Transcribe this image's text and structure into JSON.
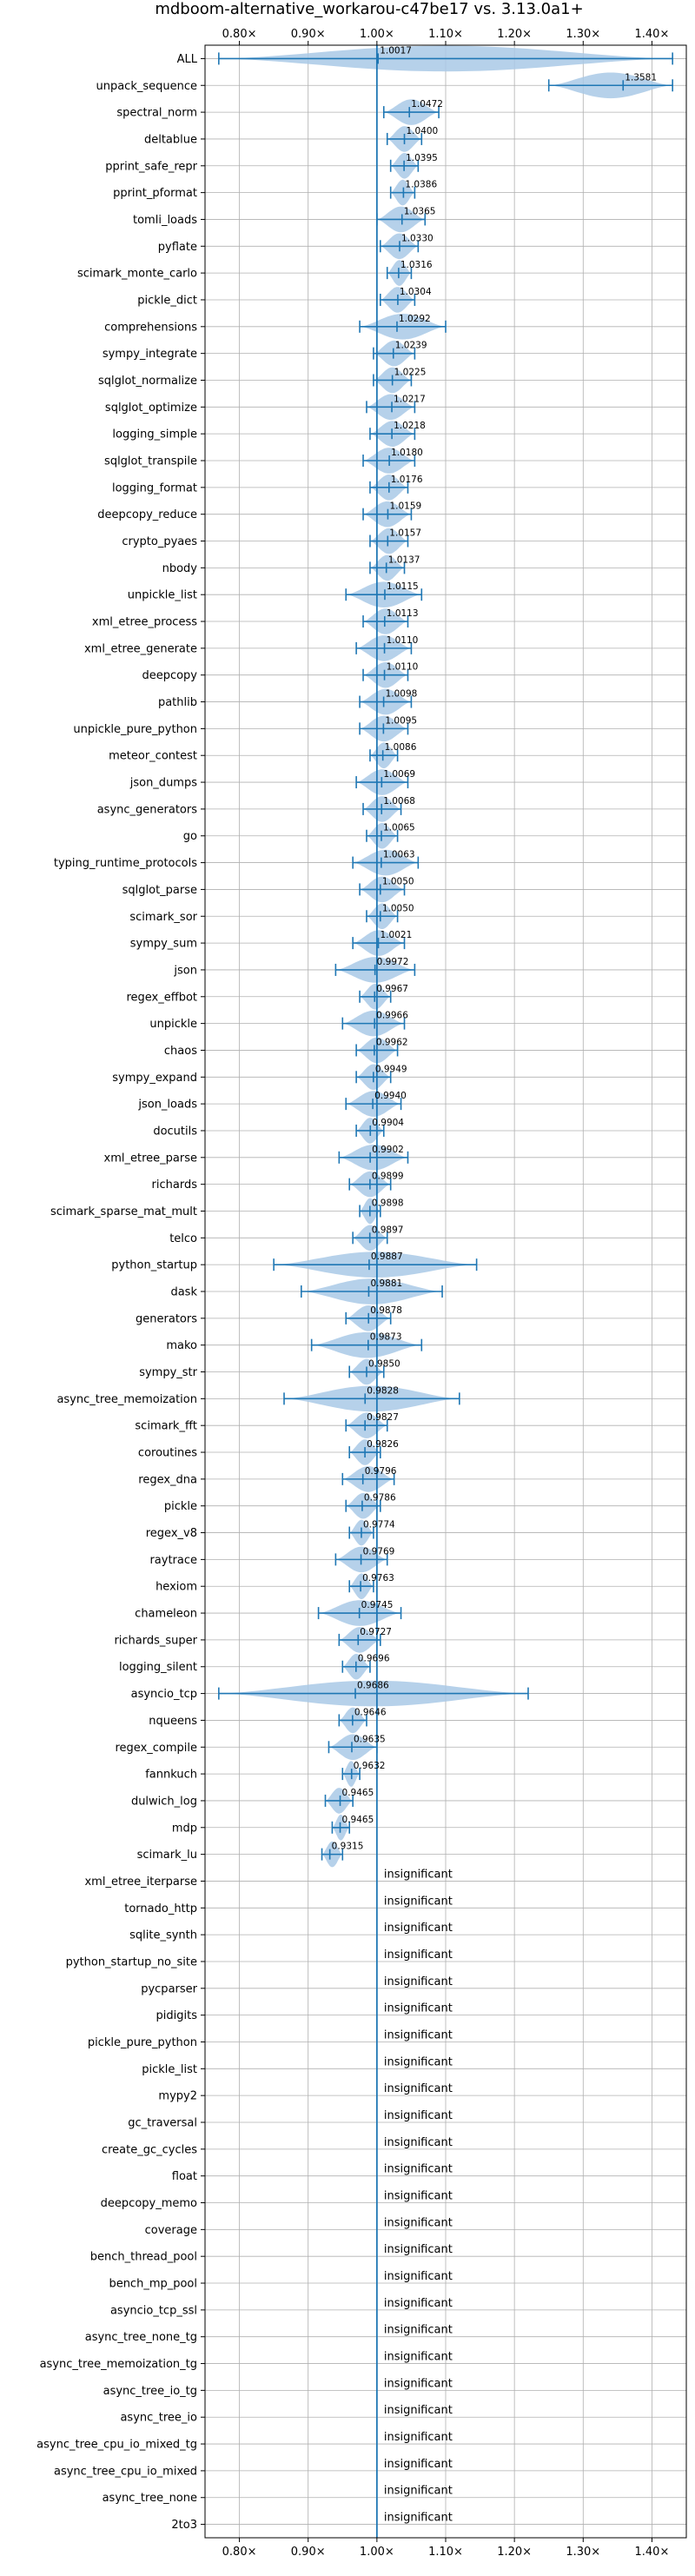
{
  "chart_data": {
    "type": "violin",
    "title": "mdboom-alternative_workarou-c47be17 vs. 3.13.0a1+",
    "xlim": [
      0.75,
      1.45
    ],
    "x_ticks": [
      0.8,
      0.9,
      1.0,
      1.1,
      1.2,
      1.3,
      1.4
    ],
    "x_tick_labels": [
      "0.80×",
      "0.90×",
      "1.00×",
      "1.10×",
      "1.20×",
      "1.30×",
      "1.40×"
    ],
    "reference_line": 1.0,
    "grid": true,
    "colors": {
      "line": "#1f77b4",
      "violin": "#a9c9e6",
      "grid": "#b0b0b0"
    },
    "insignificant_label": "insignificant",
    "benchmarks": [
      {
        "name": "ALL",
        "label": "1.0017",
        "value": 1.0017,
        "min": 0.77,
        "max": 1.43
      },
      {
        "name": "unpack_sequence",
        "label": "1.3581",
        "value": 1.3581,
        "min": 1.25,
        "max": 1.43
      },
      {
        "name": "spectral_norm",
        "label": "1.0472",
        "value": 1.0472,
        "min": 1.01,
        "max": 1.09
      },
      {
        "name": "deltablue",
        "label": "1.0400",
        "value": 1.04,
        "min": 1.015,
        "max": 1.065
      },
      {
        "name": "pprint_safe_repr",
        "label": "1.0395",
        "value": 1.0395,
        "min": 1.02,
        "max": 1.06
      },
      {
        "name": "pprint_pformat",
        "label": "1.0386",
        "value": 1.0386,
        "min": 1.02,
        "max": 1.055
      },
      {
        "name": "tomli_loads",
        "label": "1.0365",
        "value": 1.0365,
        "min": 1.0,
        "max": 1.07
      },
      {
        "name": "pyflate",
        "label": "1.0330",
        "value": 1.033,
        "min": 1.005,
        "max": 1.06
      },
      {
        "name": "scimark_monte_carlo",
        "label": "1.0316",
        "value": 1.0316,
        "min": 1.015,
        "max": 1.05
      },
      {
        "name": "pickle_dict",
        "label": "1.0304",
        "value": 1.0304,
        "min": 1.005,
        "max": 1.055
      },
      {
        "name": "comprehensions",
        "label": "1.0292",
        "value": 1.0292,
        "min": 0.975,
        "max": 1.1
      },
      {
        "name": "sympy_integrate",
        "label": "1.0239",
        "value": 1.0239,
        "min": 0.995,
        "max": 1.055
      },
      {
        "name": "sqlglot_normalize",
        "label": "1.0225",
        "value": 1.0225,
        "min": 0.995,
        "max": 1.05
      },
      {
        "name": "sqlglot_optimize",
        "label": "1.0217",
        "value": 1.0217,
        "min": 0.985,
        "max": 1.055
      },
      {
        "name": "logging_simple",
        "label": "1.0218",
        "value": 1.0218,
        "min": 0.99,
        "max": 1.055
      },
      {
        "name": "sqlglot_transpile",
        "label": "1.0180",
        "value": 1.018,
        "min": 0.98,
        "max": 1.055
      },
      {
        "name": "logging_format",
        "label": "1.0176",
        "value": 1.0176,
        "min": 0.99,
        "max": 1.045
      },
      {
        "name": "deepcopy_reduce",
        "label": "1.0159",
        "value": 1.0159,
        "min": 0.98,
        "max": 1.05
      },
      {
        "name": "crypto_pyaes",
        "label": "1.0157",
        "value": 1.0157,
        "min": 0.99,
        "max": 1.045
      },
      {
        "name": "nbody",
        "label": "1.0137",
        "value": 1.0137,
        "min": 0.99,
        "max": 1.04
      },
      {
        "name": "unpickle_list",
        "label": "1.0115",
        "value": 1.0115,
        "min": 0.955,
        "max": 1.065
      },
      {
        "name": "xml_etree_process",
        "label": "1.0113",
        "value": 1.0113,
        "min": 0.98,
        "max": 1.045
      },
      {
        "name": "xml_etree_generate",
        "label": "1.0110",
        "value": 1.011,
        "min": 0.97,
        "max": 1.05
      },
      {
        "name": "deepcopy",
        "label": "1.0110",
        "value": 1.011,
        "min": 0.98,
        "max": 1.045
      },
      {
        "name": "pathlib",
        "label": "1.0098",
        "value": 1.0098,
        "min": 0.975,
        "max": 1.05
      },
      {
        "name": "unpickle_pure_python",
        "label": "1.0095",
        "value": 1.0095,
        "min": 0.975,
        "max": 1.045
      },
      {
        "name": "meteor_contest",
        "label": "1.0086",
        "value": 1.0086,
        "min": 0.99,
        "max": 1.03
      },
      {
        "name": "json_dumps",
        "label": "1.0069",
        "value": 1.0069,
        "min": 0.97,
        "max": 1.045
      },
      {
        "name": "async_generators",
        "label": "1.0068",
        "value": 1.0068,
        "min": 0.98,
        "max": 1.035
      },
      {
        "name": "go",
        "label": "1.0065",
        "value": 1.0065,
        "min": 0.985,
        "max": 1.03
      },
      {
        "name": "typing_runtime_protocols",
        "label": "1.0063",
        "value": 1.0063,
        "min": 0.965,
        "max": 1.06
      },
      {
        "name": "sqlglot_parse",
        "label": "1.0050",
        "value": 1.005,
        "min": 0.975,
        "max": 1.04
      },
      {
        "name": "scimark_sor",
        "label": "1.0050",
        "value": 1.005,
        "min": 0.985,
        "max": 1.03
      },
      {
        "name": "sympy_sum",
        "label": "1.0021",
        "value": 1.0021,
        "min": 0.965,
        "max": 1.04
      },
      {
        "name": "json",
        "label": "0.9972",
        "value": 0.9972,
        "min": 0.94,
        "max": 1.055
      },
      {
        "name": "regex_effbot",
        "label": "0.9967",
        "value": 0.9967,
        "min": 0.975,
        "max": 1.02
      },
      {
        "name": "unpickle",
        "label": "0.9966",
        "value": 0.9966,
        "min": 0.95,
        "max": 1.04
      },
      {
        "name": "chaos",
        "label": "0.9962",
        "value": 0.9962,
        "min": 0.97,
        "max": 1.03
      },
      {
        "name": "sympy_expand",
        "label": "0.9949",
        "value": 0.9949,
        "min": 0.97,
        "max": 1.02
      },
      {
        "name": "json_loads",
        "label": "0.9940",
        "value": 0.994,
        "min": 0.955,
        "max": 1.035
      },
      {
        "name": "docutils",
        "label": "0.9904",
        "value": 0.9904,
        "min": 0.97,
        "max": 1.01
      },
      {
        "name": "xml_etree_parse",
        "label": "0.9902",
        "value": 0.9902,
        "min": 0.945,
        "max": 1.045
      },
      {
        "name": "richards",
        "label": "0.9899",
        "value": 0.9899,
        "min": 0.96,
        "max": 1.02
      },
      {
        "name": "scimark_sparse_mat_mult",
        "label": "0.9898",
        "value": 0.9898,
        "min": 0.975,
        "max": 1.005
      },
      {
        "name": "telco",
        "label": "0.9897",
        "value": 0.9897,
        "min": 0.965,
        "max": 1.015
      },
      {
        "name": "python_startup",
        "label": "0.9887",
        "value": 0.9887,
        "min": 0.85,
        "max": 1.145
      },
      {
        "name": "dask",
        "label": "0.9881",
        "value": 0.9881,
        "min": 0.89,
        "max": 1.095
      },
      {
        "name": "generators",
        "label": "0.9878",
        "value": 0.9878,
        "min": 0.955,
        "max": 1.02
      },
      {
        "name": "mako",
        "label": "0.9873",
        "value": 0.9873,
        "min": 0.905,
        "max": 1.065
      },
      {
        "name": "sympy_str",
        "label": "0.9850",
        "value": 0.985,
        "min": 0.96,
        "max": 1.01
      },
      {
        "name": "async_tree_memoization",
        "label": "0.9828",
        "value": 0.9828,
        "min": 0.865,
        "max": 1.12
      },
      {
        "name": "scimark_fft",
        "label": "0.9827",
        "value": 0.9827,
        "min": 0.955,
        "max": 1.015
      },
      {
        "name": "coroutines",
        "label": "0.9826",
        "value": 0.9826,
        "min": 0.96,
        "max": 1.005
      },
      {
        "name": "regex_dna",
        "label": "0.9796",
        "value": 0.9796,
        "min": 0.95,
        "max": 1.025
      },
      {
        "name": "pickle",
        "label": "0.9786",
        "value": 0.9786,
        "min": 0.955,
        "max": 1.005
      },
      {
        "name": "regex_v8",
        "label": "0.9774",
        "value": 0.9774,
        "min": 0.96,
        "max": 0.995
      },
      {
        "name": "raytrace",
        "label": "0.9769",
        "value": 0.9769,
        "min": 0.94,
        "max": 1.015
      },
      {
        "name": "hexiom",
        "label": "0.9763",
        "value": 0.9763,
        "min": 0.96,
        "max": 0.995
      },
      {
        "name": "chameleon",
        "label": "0.9745",
        "value": 0.9745,
        "min": 0.915,
        "max": 1.035
      },
      {
        "name": "richards_super",
        "label": "0.9727",
        "value": 0.9727,
        "min": 0.945,
        "max": 1.005
      },
      {
        "name": "logging_silent",
        "label": "0.9696",
        "value": 0.9696,
        "min": 0.95,
        "max": 0.99
      },
      {
        "name": "asyncio_tcp",
        "label": "0.9686",
        "value": 0.9686,
        "min": 0.77,
        "max": 1.22
      },
      {
        "name": "nqueens",
        "label": "0.9646",
        "value": 0.9646,
        "min": 0.945,
        "max": 0.985
      },
      {
        "name": "regex_compile",
        "label": "0.9635",
        "value": 0.9635,
        "min": 0.93,
        "max": 1.0
      },
      {
        "name": "fannkuch",
        "label": "0.9632",
        "value": 0.9632,
        "min": 0.95,
        "max": 0.975
      },
      {
        "name": "dulwich_log",
        "label": "0.9465",
        "value": 0.9465,
        "min": 0.925,
        "max": 0.965
      },
      {
        "name": "mdp",
        "label": "0.9465",
        "value": 0.9465,
        "min": 0.935,
        "max": 0.96
      },
      {
        "name": "scimark_lu",
        "label": "0.9315",
        "value": 0.9315,
        "min": 0.92,
        "max": 0.95
      },
      {
        "name": "xml_etree_iterparse",
        "insignificant": true
      },
      {
        "name": "tornado_http",
        "insignificant": true
      },
      {
        "name": "sqlite_synth",
        "insignificant": true
      },
      {
        "name": "python_startup_no_site",
        "insignificant": true
      },
      {
        "name": "pycparser",
        "insignificant": true
      },
      {
        "name": "pidigits",
        "insignificant": true
      },
      {
        "name": "pickle_pure_python",
        "insignificant": true
      },
      {
        "name": "pickle_list",
        "insignificant": true
      },
      {
        "name": "mypy2",
        "insignificant": true
      },
      {
        "name": "gc_traversal",
        "insignificant": true
      },
      {
        "name": "create_gc_cycles",
        "insignificant": true
      },
      {
        "name": "float",
        "insignificant": true
      },
      {
        "name": "deepcopy_memo",
        "insignificant": true
      },
      {
        "name": "coverage",
        "insignificant": true
      },
      {
        "name": "bench_thread_pool",
        "insignificant": true
      },
      {
        "name": "bench_mp_pool",
        "insignificant": true
      },
      {
        "name": "asyncio_tcp_ssl",
        "insignificant": true
      },
      {
        "name": "async_tree_none_tg",
        "insignificant": true
      },
      {
        "name": "async_tree_memoization_tg",
        "insignificant": true
      },
      {
        "name": "async_tree_io_tg",
        "insignificant": true
      },
      {
        "name": "async_tree_io",
        "insignificant": true
      },
      {
        "name": "async_tree_cpu_io_mixed_tg",
        "insignificant": true
      },
      {
        "name": "async_tree_cpu_io_mixed",
        "insignificant": true
      },
      {
        "name": "async_tree_none",
        "insignificant": true
      },
      {
        "name": "2to3",
        "insignificant": true
      }
    ]
  }
}
